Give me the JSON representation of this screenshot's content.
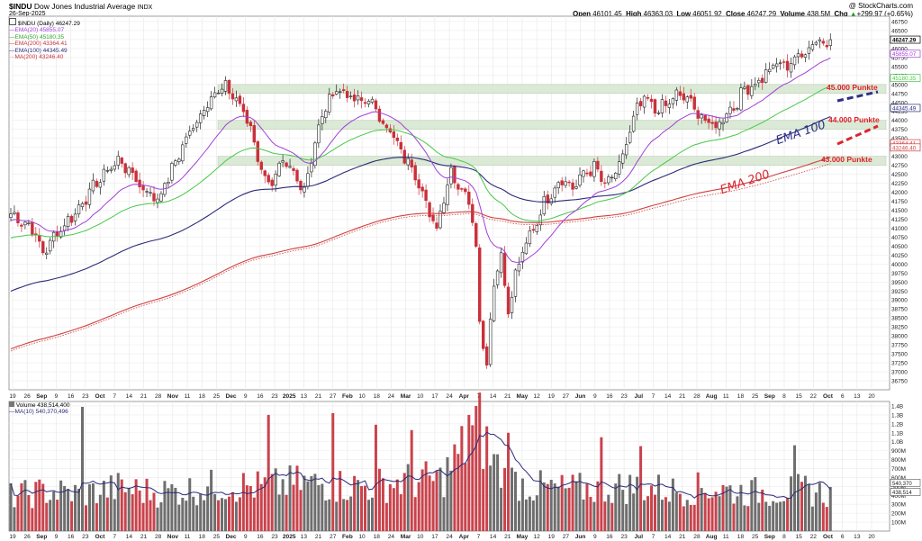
{
  "header": {
    "symbol": "$INDU",
    "name": "Dow Jones Industrial Average",
    "exchange": "INDX",
    "date": "26-Sep-2025",
    "copyright": "@ StockCharts.com",
    "open_label": "Open",
    "open": "46101.45",
    "high_label": "High",
    "high": "46363.03",
    "low_label": "Low",
    "low": "46051.92",
    "close_label": "Close",
    "close": "46247.29",
    "volume_label": "Volume",
    "volume": "438.5M",
    "chg_label": "Chg",
    "chg": "+299.97 (+0.65%)",
    "up_icon": "triangle-up-icon"
  },
  "legend": {
    "price": "$INDU (Daily) 46247.29",
    "ema20": "EMA(20) 45855.07",
    "ema50": "EMA(50) 45180.35",
    "ema200": "EMA(200) 43364.41",
    "ema100": "EMA(100) 44345.49",
    "ma200": "MA(200) 43246.40"
  },
  "volume_legend": {
    "volume": "Volume 438,514,400",
    "ma10": "MA(10) 540,370,496"
  },
  "colors": {
    "up": "#777777",
    "down": "#c9303a",
    "ema20": "#a040d8",
    "ema50": "#48c848",
    "ema100": "#2a2a7a",
    "ema200": "#d04040",
    "ma200": "#d04040",
    "zone": "#d8e8d2",
    "annotation": "#e0212b",
    "ema100_text": "#2e2e8a",
    "vol_up": "#6e6e6e",
    "vol_down": "#c9434c"
  },
  "annotations": {
    "zone1": "45.000 Punkte",
    "zone2": "44.000 Punkte",
    "zone3": "43.000 Punkte",
    "ema100": "EMA 100",
    "ema200": "EMA 200"
  },
  "chart_data": {
    "type": "candlestick",
    "price_axis": {
      "ticks": [
        36750,
        37000,
        37250,
        37500,
        37750,
        38000,
        38250,
        38500,
        38750,
        39000,
        39250,
        39500,
        39750,
        40000,
        40250,
        40500,
        40750,
        41000,
        41250,
        41500,
        41750,
        42000,
        42250,
        42500,
        42750,
        43000,
        43250,
        43500,
        43750,
        44000,
        44250,
        44500,
        44750,
        45000,
        45250,
        45500,
        45750,
        46000,
        46250,
        46500,
        46750
      ],
      "range": [
        36500,
        46900
      ]
    },
    "value_tags": [
      {
        "label": "46247.29",
        "value": 46247.29,
        "series": "close"
      },
      {
        "label": "45855.07",
        "value": 45855.07,
        "series": "ema20"
      },
      {
        "label": "45180.35",
        "value": 45180.35,
        "series": "ema50"
      },
      {
        "label": "44345.49",
        "value": 44345.49,
        "series": "ema100"
      },
      {
        "label": "43364.41",
        "value": 43364.41,
        "series": "ema200"
      },
      {
        "label": "43246.40",
        "value": 43246.4,
        "series": "ma200"
      }
    ],
    "x_tick_labels": [
      "19",
      "26",
      "Sep",
      "9",
      "16",
      "23",
      "Oct",
      "7",
      "14",
      "21",
      "28",
      "Nov",
      "11",
      "18",
      "25",
      "Dec",
      "9",
      "16",
      "23",
      "2025",
      "13",
      "21",
      "27",
      "Feb",
      "10",
      "18",
      "24",
      "Mar",
      "10",
      "17",
      "24",
      "Apr",
      "7",
      "14",
      "21",
      "May",
      "12",
      "19",
      "27",
      "Jun",
      "9",
      "16",
      "23",
      "Jul",
      "7",
      "14",
      "21",
      "28",
      "Aug",
      "11",
      "18",
      "25",
      "Sep",
      "8",
      "15",
      "22",
      "Oct",
      "6",
      "13",
      "20"
    ],
    "x_tick_bold": [
      "Sep",
      "Oct",
      "Nov",
      "Dec",
      "2025",
      "Feb",
      "Mar",
      "Apr",
      "May",
      "Jun",
      "Jul",
      "Aug"
    ],
    "support_zones": [
      {
        "low": 44750,
        "high": 45000,
        "label_key": "zone1"
      },
      {
        "low": 43750,
        "high": 44000,
        "label_key": "zone2"
      },
      {
        "low": 42750,
        "high": 43000,
        "label_key": "zone3"
      }
    ],
    "volume_axis": {
      "ticks_labels": [
        "100M",
        "200M",
        "300M",
        "400M",
        "500M",
        "600M",
        "700M",
        "800M",
        "900M",
        "1.0B",
        "1.1B",
        "1.2B",
        "1.3B",
        "1.4B"
      ],
      "ticks_values": [
        100,
        200,
        300,
        400,
        500,
        600,
        700,
        800,
        900,
        1000,
        1100,
        1200,
        1300,
        1400
      ],
      "range": [
        0,
        1450
      ]
    },
    "volume_value_tags": [
      {
        "label": "540,370",
        "value": 540
      },
      {
        "label": "438,514",
        "value": 438
      }
    ],
    "price_anchors": [
      [
        0,
        41400
      ],
      [
        6,
        41000
      ],
      [
        9,
        40300
      ],
      [
        13,
        40900
      ],
      [
        17,
        41300
      ],
      [
        22,
        42000
      ],
      [
        26,
        42500
      ],
      [
        30,
        42900
      ],
      [
        33,
        42600
      ],
      [
        37,
        42100
      ],
      [
        41,
        41800
      ],
      [
        44,
        42400
      ],
      [
        48,
        43300
      ],
      [
        52,
        44000
      ],
      [
        56,
        44700
      ],
      [
        60,
        44900
      ],
      [
        63,
        44600
      ],
      [
        67,
        43800
      ],
      [
        70,
        42600
      ],
      [
        73,
        42200
      ],
      [
        76,
        42800
      ],
      [
        79,
        42500
      ],
      [
        82,
        42100
      ],
      [
        85,
        43400
      ],
      [
        88,
        44400
      ],
      [
        91,
        44900
      ],
      [
        94,
        44700
      ],
      [
        97,
        44500
      ],
      [
        100,
        44600
      ],
      [
        103,
        44100
      ],
      [
        106,
        43700
      ],
      [
        109,
        43100
      ],
      [
        112,
        42700
      ],
      [
        115,
        42100
      ],
      [
        117,
        41300
      ],
      [
        119,
        41000
      ],
      [
        121,
        41900
      ],
      [
        123,
        42600
      ],
      [
        125,
        42200
      ],
      [
        127,
        42000
      ],
      [
        129,
        41300
      ],
      [
        130,
        40500
      ],
      [
        131,
        38500
      ],
      [
        132,
        37700
      ],
      [
        133,
        37300
      ],
      [
        135,
        39500
      ],
      [
        137,
        40300
      ],
      [
        139,
        38600
      ],
      [
        141,
        39700
      ],
      [
        143,
        40300
      ],
      [
        145,
        40800
      ],
      [
        147,
        41200
      ],
      [
        149,
        41700
      ],
      [
        151,
        42000
      ],
      [
        154,
        42400
      ],
      [
        157,
        42100
      ],
      [
        160,
        42500
      ],
      [
        163,
        42700
      ],
      [
        166,
        42200
      ],
      [
        169,
        42500
      ],
      [
        171,
        43000
      ],
      [
        173,
        43700
      ],
      [
        175,
        44300
      ],
      [
        177,
        44600
      ],
      [
        180,
        44300
      ],
      [
        183,
        44400
      ],
      [
        186,
        44700
      ],
      [
        189,
        44600
      ],
      [
        192,
        44200
      ],
      [
        195,
        43900
      ],
      [
        197,
        43800
      ],
      [
        199,
        44100
      ],
      [
        201,
        44300
      ],
      [
        203,
        44500
      ],
      [
        205,
        44900
      ],
      [
        208,
        45000
      ],
      [
        211,
        45300
      ],
      [
        214,
        45600
      ],
      [
        216,
        45500
      ],
      [
        219,
        45700
      ],
      [
        222,
        45900
      ],
      [
        225,
        46300
      ],
      [
        227,
        46100
      ],
      [
        229,
        46247
      ]
    ],
    "volume_anchors": [
      [
        0,
        420
      ],
      [
        10,
        480
      ],
      [
        20,
        450
      ],
      [
        30,
        520
      ],
      [
        40,
        470
      ],
      [
        50,
        500
      ],
      [
        60,
        560
      ],
      [
        70,
        530
      ],
      [
        80,
        580
      ],
      [
        90,
        560
      ],
      [
        100,
        540
      ],
      [
        110,
        600
      ],
      [
        120,
        620
      ],
      [
        125,
        900
      ],
      [
        128,
        1100
      ],
      [
        131,
        1250
      ],
      [
        134,
        900
      ],
      [
        138,
        650
      ],
      [
        145,
        540
      ],
      [
        155,
        500
      ],
      [
        165,
        520
      ],
      [
        175,
        540
      ],
      [
        185,
        490
      ],
      [
        195,
        520
      ],
      [
        205,
        470
      ],
      [
        215,
        480
      ],
      [
        222,
        500
      ],
      [
        229,
        438
      ]
    ],
    "volume_spikes": [
      [
        20,
        1390
      ],
      [
        72,
        1300
      ],
      [
        90,
        1320
      ],
      [
        102,
        1190
      ],
      [
        112,
        1130
      ],
      [
        128,
        1300
      ],
      [
        130,
        1400
      ],
      [
        139,
        1100
      ],
      [
        165,
        1050
      ],
      [
        176,
        950
      ],
      [
        219,
        960
      ]
    ],
    "ema_offsets_note": "",
    "series": [
      {
        "name": "$INDU (Daily)",
        "kind": "candles"
      },
      {
        "name": "EMA(20)",
        "kind": "line",
        "color_key": "ema20"
      },
      {
        "name": "EMA(50)",
        "kind": "line",
        "color_key": "ema50"
      },
      {
        "name": "EMA(100)",
        "kind": "line",
        "color_key": "ema100"
      },
      {
        "name": "EMA(200)",
        "kind": "line",
        "color_key": "ema200"
      },
      {
        "name": "MA(200)",
        "kind": "dotted",
        "color_key": "ma200"
      },
      {
        "name": "Volume",
        "kind": "bars"
      },
      {
        "name": "MA(10)",
        "kind": "line",
        "color_key": "ema100"
      }
    ]
  }
}
